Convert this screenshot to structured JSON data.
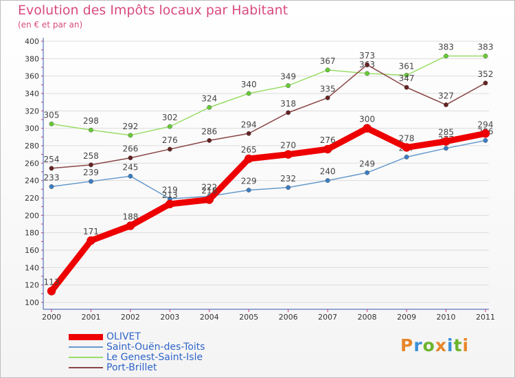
{
  "header": {
    "title": "Evolution des Impôts locaux par Habitant",
    "subtitle": "(en € et par an)"
  },
  "logo": {
    "text": "Proxiti",
    "colors": [
      "#e8862a",
      "#3a8fd8",
      "#6cb42c",
      "#e8862a",
      "#3a8fd8",
      "#6cb42c",
      "#e8862a"
    ]
  },
  "chart_data": {
    "type": "line",
    "title": "Evolution des Impôts locaux par Habitant",
    "subtitle": "(en € et par an)",
    "xlabel": "",
    "ylabel": "",
    "x": [
      "2000",
      "2001",
      "2002",
      "2003",
      "2004",
      "2005",
      "2006",
      "2007",
      "2008",
      "2009",
      "2010",
      "2011"
    ],
    "ylim": [
      100,
      400
    ],
    "yticks": [
      100,
      120,
      140,
      160,
      180,
      200,
      220,
      240,
      260,
      280,
      300,
      320,
      340,
      360,
      380,
      400
    ],
    "grid": "horizontal",
    "legend_position": "bottom-left",
    "series": [
      {
        "name": "OLIVET",
        "color": "#ee0000",
        "marker": "#ee0000",
        "width": "thick",
        "values": [
          113,
          171,
          188,
          213,
          218,
          265,
          270,
          276,
          300,
          278,
          285,
          294
        ]
      },
      {
        "name": "Saint-Ouën-des-Toits",
        "color": "#6699cc",
        "marker": "#3a7ec4",
        "width": "thin",
        "values": [
          233,
          239,
          245,
          219,
          222,
          229,
          232,
          240,
          249,
          267,
          277,
          286
        ]
      },
      {
        "name": "Le Genest-Saint-Isle",
        "color": "#99dd66",
        "marker": "#66cc33",
        "width": "thin",
        "values": [
          305,
          298,
          292,
          302,
          324,
          340,
          349,
          367,
          363,
          361,
          383,
          383
        ]
      },
      {
        "name": "Port-Brillet",
        "color": "#884444",
        "marker": "#662222",
        "width": "thin",
        "values": [
          254,
          258,
          266,
          276,
          286,
          294,
          318,
          335,
          373,
          347,
          327,
          352
        ]
      }
    ]
  }
}
